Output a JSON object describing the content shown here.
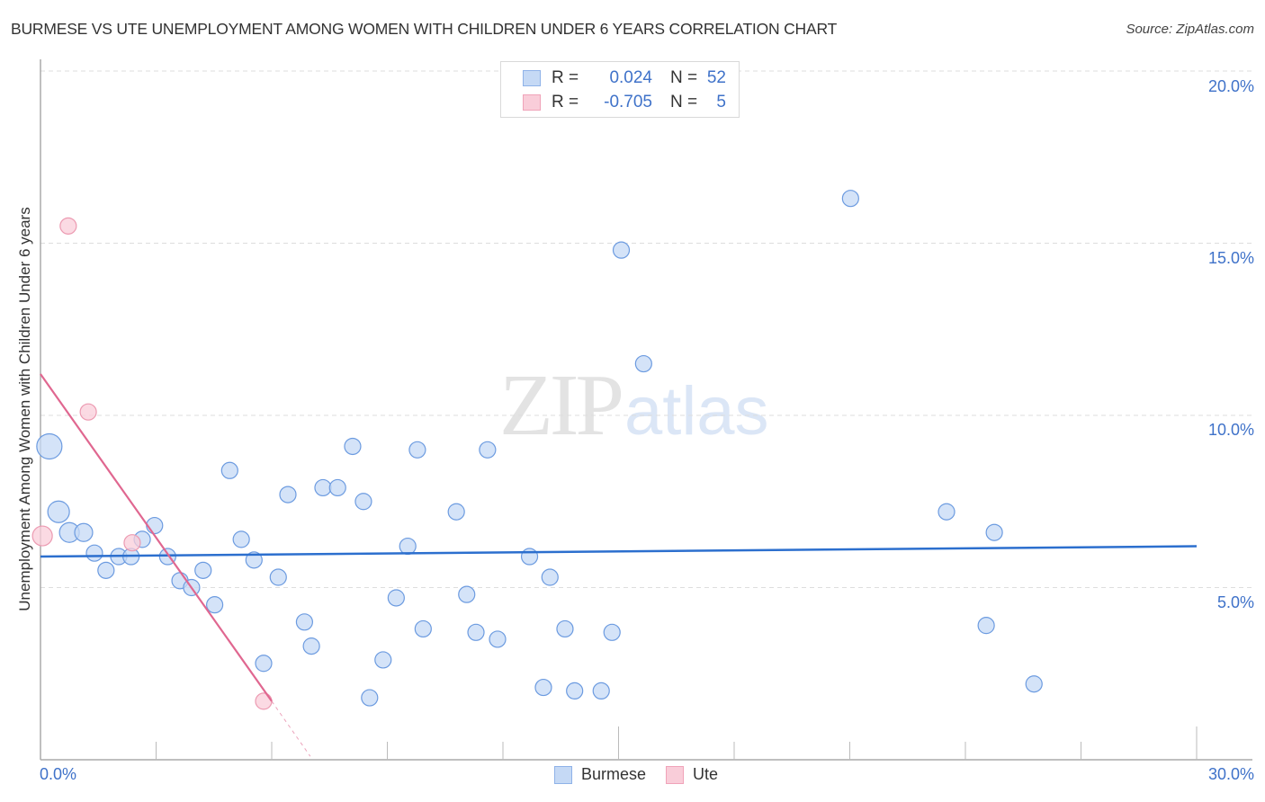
{
  "header": {
    "title": "BURMESE VS UTE UNEMPLOYMENT AMONG WOMEN WITH CHILDREN UNDER 6 YEARS CORRELATION CHART",
    "source": "Source: ZipAtlas.com"
  },
  "watermark": {
    "zip": "ZIP",
    "atlas": "atlas"
  },
  "colors": {
    "burmese_fill": "#c5d9f5",
    "burmese_stroke": "#6c9be0",
    "burmese_line": "#2c6fce",
    "ute_fill": "#f9cdd9",
    "ute_stroke": "#ec9ab1",
    "ute_line": "#e06790",
    "axis_label": "#3f72c9",
    "grid": "#dddddd"
  },
  "legend": {
    "rows": [
      {
        "series": "Burmese",
        "r_label": "R =",
        "r_value": "0.024",
        "n_label": "N =",
        "n_value": "52"
      },
      {
        "series": "Ute",
        "r_label": "R =",
        "r_value": "-0.705",
        "n_label": "N =",
        "n_value": "5"
      }
    ]
  },
  "bottom_legend": [
    {
      "label": "Burmese"
    },
    {
      "label": "Ute"
    }
  ],
  "axes": {
    "ylabel": "Unemployment Among Women with Children Under 6 years",
    "y_ticks": [
      {
        "value": 20,
        "label": "20.0%"
      },
      {
        "value": 15,
        "label": "15.0%"
      },
      {
        "value": 10,
        "label": "10.0%"
      },
      {
        "value": 5,
        "label": "5.0%"
      }
    ],
    "x_ticks": [
      {
        "value": 0,
        "label": "0.0%"
      },
      {
        "value": 30,
        "label": "30.0%"
      }
    ]
  },
  "chart_data": {
    "type": "scatter",
    "title": "BURMESE VS UTE UNEMPLOYMENT AMONG WOMEN WITH CHILDREN UNDER 6 YEARS CORRELATION CHART",
    "xlabel": "",
    "ylabel": "Unemployment Among Women with Children Under 6 years",
    "xlim": [
      0,
      30
    ],
    "ylim": [
      0,
      20
    ],
    "x_unit": "%",
    "y_unit": "%",
    "grid": {
      "y": true,
      "x": false,
      "style": "dashed"
    },
    "legend_position": "top-center (stats) and bottom-center (series)",
    "series": [
      {
        "name": "Burmese",
        "r": 0.024,
        "n": 52,
        "trend": {
          "x": [
            0,
            30
          ],
          "y": [
            5.9,
            6.2
          ]
        },
        "points": [
          {
            "x": 0.23,
            "y": 9.1,
            "s": 14
          },
          {
            "x": 0.47,
            "y": 7.2,
            "s": 12
          },
          {
            "x": 0.75,
            "y": 6.6,
            "s": 11
          },
          {
            "x": 1.12,
            "y": 6.6,
            "s": 10
          },
          {
            "x": 1.4,
            "y": 6.0,
            "s": 9
          },
          {
            "x": 1.7,
            "y": 5.5,
            "s": 9
          },
          {
            "x": 2.03,
            "y": 5.9,
            "s": 9
          },
          {
            "x": 2.35,
            "y": 5.9,
            "s": 9
          },
          {
            "x": 2.64,
            "y": 6.4,
            "s": 9
          },
          {
            "x": 2.96,
            "y": 6.8,
            "s": 9
          },
          {
            "x": 3.3,
            "y": 5.9,
            "s": 9
          },
          {
            "x": 3.62,
            "y": 5.2,
            "s": 9
          },
          {
            "x": 3.92,
            "y": 5.0,
            "s": 9
          },
          {
            "x": 4.22,
            "y": 5.5,
            "s": 9
          },
          {
            "x": 4.52,
            "y": 4.5,
            "s": 9
          },
          {
            "x": 4.91,
            "y": 8.4,
            "s": 9
          },
          {
            "x": 5.21,
            "y": 6.4,
            "s": 9
          },
          {
            "x": 5.54,
            "y": 5.8,
            "s": 9
          },
          {
            "x": 5.79,
            "y": 2.8,
            "s": 9
          },
          {
            "x": 6.17,
            "y": 5.3,
            "s": 9
          },
          {
            "x": 6.42,
            "y": 7.7,
            "s": 9
          },
          {
            "x": 6.85,
            "y": 4.0,
            "s": 9
          },
          {
            "x": 7.03,
            "y": 3.3,
            "s": 9
          },
          {
            "x": 7.33,
            "y": 7.9,
            "s": 9
          },
          {
            "x": 7.71,
            "y": 7.9,
            "s": 9
          },
          {
            "x": 8.1,
            "y": 9.1,
            "s": 9
          },
          {
            "x": 8.38,
            "y": 7.5,
            "s": 9
          },
          {
            "x": 8.54,
            "y": 1.8,
            "s": 9
          },
          {
            "x": 8.89,
            "y": 2.9,
            "s": 9
          },
          {
            "x": 9.23,
            "y": 4.7,
            "s": 9
          },
          {
            "x": 9.53,
            "y": 6.2,
            "s": 9
          },
          {
            "x": 9.78,
            "y": 9.0,
            "s": 9
          },
          {
            "x": 9.93,
            "y": 3.8,
            "s": 9
          },
          {
            "x": 10.79,
            "y": 7.2,
            "s": 9
          },
          {
            "x": 11.06,
            "y": 4.8,
            "s": 9
          },
          {
            "x": 11.3,
            "y": 3.7,
            "s": 9
          },
          {
            "x": 11.6,
            "y": 9.0,
            "s": 9
          },
          {
            "x": 11.86,
            "y": 3.5,
            "s": 9
          },
          {
            "x": 12.69,
            "y": 5.9,
            "s": 9
          },
          {
            "x": 13.05,
            "y": 2.1,
            "s": 9
          },
          {
            "x": 13.22,
            "y": 5.3,
            "s": 9
          },
          {
            "x": 13.61,
            "y": 3.8,
            "s": 9
          },
          {
            "x": 13.86,
            "y": 2.0,
            "s": 9
          },
          {
            "x": 14.55,
            "y": 2.0,
            "s": 9
          },
          {
            "x": 14.83,
            "y": 3.7,
            "s": 9
          },
          {
            "x": 15.07,
            "y": 14.8,
            "s": 9
          },
          {
            "x": 15.65,
            "y": 11.5,
            "s": 9
          },
          {
            "x": 21.02,
            "y": 16.3,
            "s": 9
          },
          {
            "x": 23.51,
            "y": 7.2,
            "s": 9
          },
          {
            "x": 24.54,
            "y": 3.9,
            "s": 9
          },
          {
            "x": 24.75,
            "y": 6.6,
            "s": 9
          },
          {
            "x": 25.78,
            "y": 2.2,
            "s": 9
          }
        ]
      },
      {
        "name": "Ute",
        "r": -0.705,
        "n": 5,
        "trend": {
          "x": [
            0,
            6.0
          ],
          "y": [
            11.2,
            1.7
          ],
          "dashed_extension_to": {
            "x": 7.0,
            "y": 0.1
          }
        },
        "points": [
          {
            "x": 0.05,
            "y": 6.5,
            "s": 11
          },
          {
            "x": 0.72,
            "y": 15.5,
            "s": 9
          },
          {
            "x": 1.24,
            "y": 10.1,
            "s": 9
          },
          {
            "x": 2.38,
            "y": 6.3,
            "s": 9
          },
          {
            "x": 5.79,
            "y": 1.7,
            "s": 9
          }
        ]
      }
    ]
  }
}
